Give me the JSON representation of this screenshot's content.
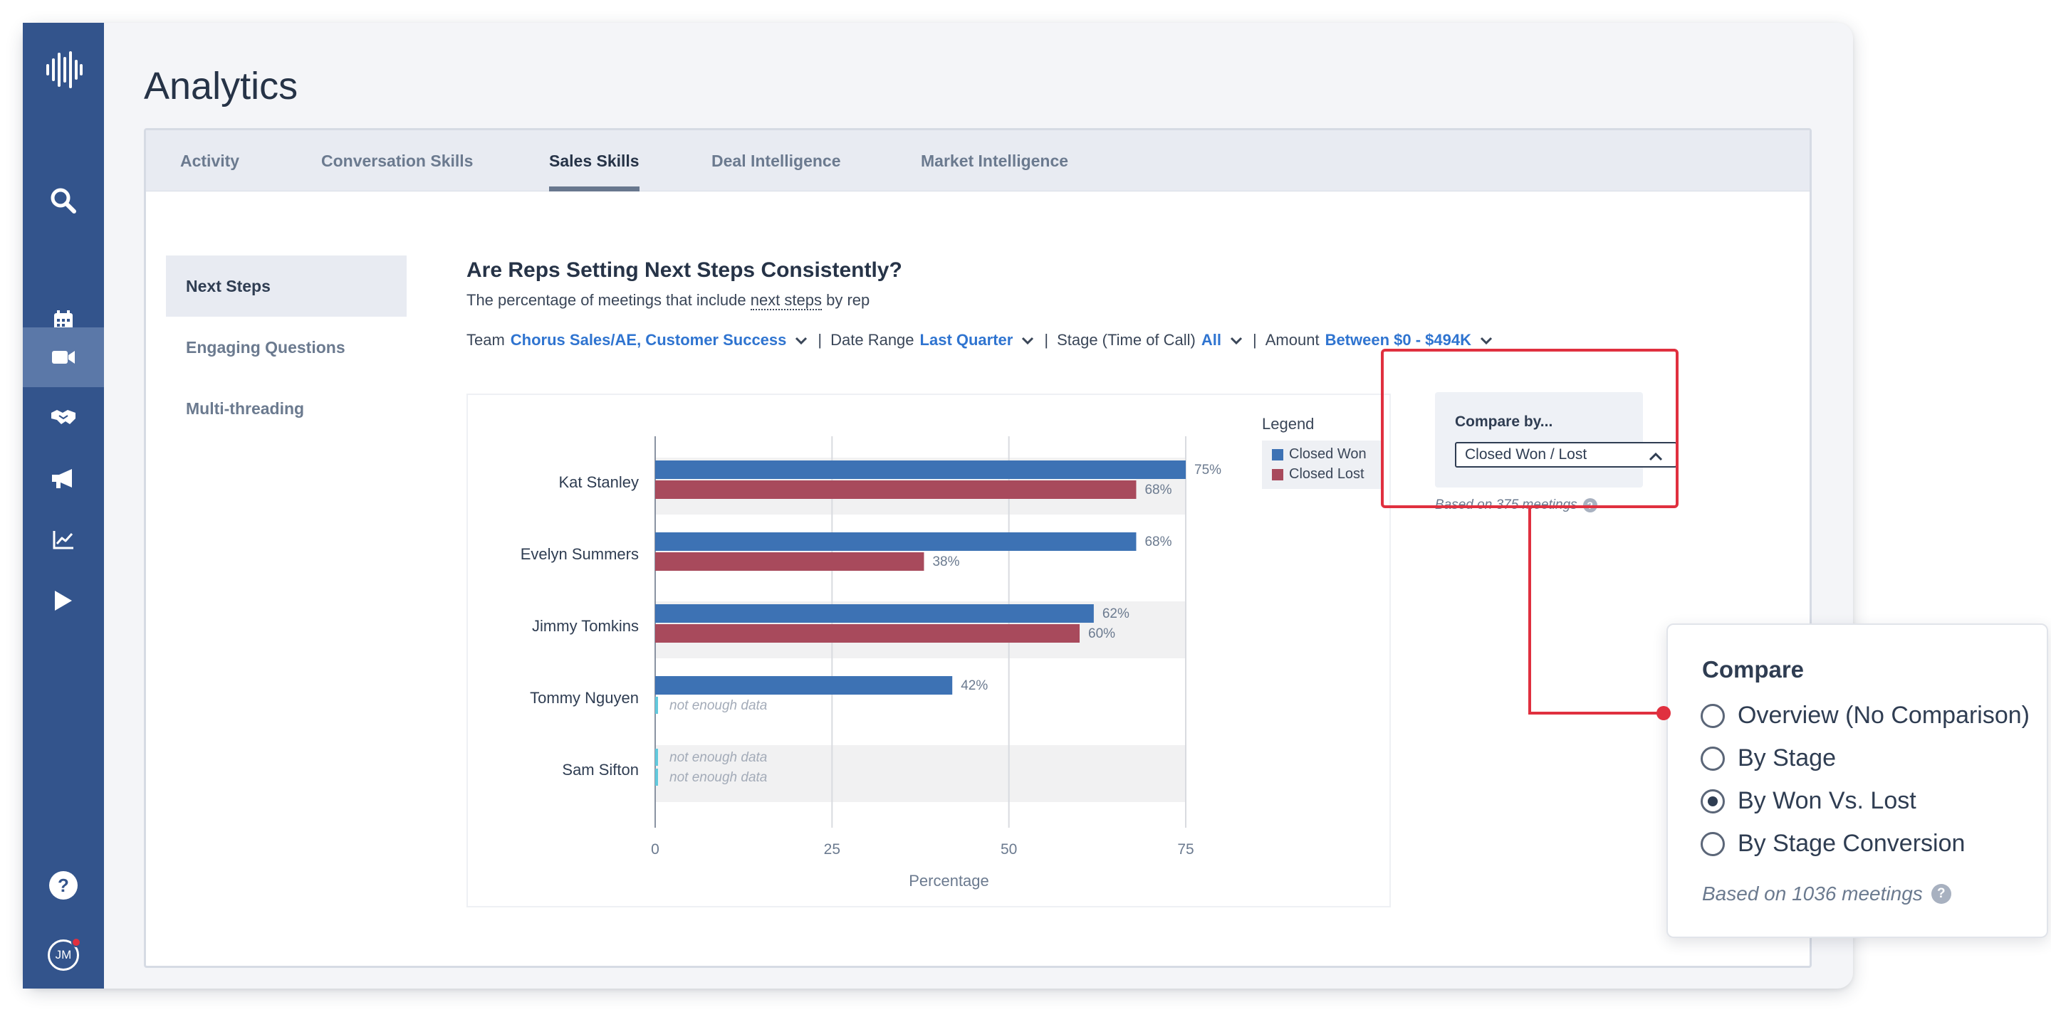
{
  "app": {
    "title": "Analytics"
  },
  "sidebar": {
    "items": [
      {
        "icon": "logo-waveform-icon"
      },
      {
        "icon": "search-icon"
      },
      {
        "icon": "calendar-icon"
      },
      {
        "icon": "video-camera-icon",
        "active": true
      },
      {
        "icon": "handshake-icon"
      },
      {
        "icon": "megaphone-icon"
      },
      {
        "icon": "line-chart-icon"
      },
      {
        "icon": "play-icon"
      },
      {
        "icon": "help-icon"
      },
      {
        "icon": "avatar",
        "initials": "JM",
        "notification_color": "#e0303f"
      }
    ]
  },
  "tabs": [
    {
      "label": "Activity"
    },
    {
      "label": "Conversation Skills"
    },
    {
      "label": "Sales Skills",
      "active": true
    },
    {
      "label": "Deal Intelligence"
    },
    {
      "label": "Market Intelligence"
    }
  ],
  "subnav": [
    {
      "label": "Next Steps",
      "active": true
    },
    {
      "label": "Engaging Questions"
    },
    {
      "label": "Multi-threading"
    }
  ],
  "chart_header": {
    "title": "Are Reps Setting Next Steps Consistently?",
    "subtitle_before": "The percentage of meetings that include ",
    "subtitle_link": "next steps",
    "subtitle_after": " by rep"
  },
  "filters": {
    "team_label": "Team",
    "team_value": "Chorus Sales/AE, Customer Success",
    "date_label": "Date Range",
    "date_value": "Last Quarter",
    "stage_label": "Stage (Time of Call)",
    "stage_value": "All",
    "amount_label": "Amount",
    "amount_value": "Between $0 - $494K",
    "separator": "|"
  },
  "legend": {
    "title": "Legend",
    "items": [
      {
        "label": "Closed Won",
        "color": "#3d72b4"
      },
      {
        "label": "Closed Lost",
        "color": "#a84a5c"
      }
    ]
  },
  "compare_panel": {
    "label": "Compare by...",
    "selected": "Closed Won / Lost",
    "based_on": "Based on 375 meetings"
  },
  "popup": {
    "title": "Compare",
    "options": [
      {
        "label": "Overview (No Comparison)",
        "checked": false
      },
      {
        "label": "By Stage",
        "checked": false
      },
      {
        "label": "By Won Vs. Lost",
        "checked": true
      },
      {
        "label": "By Stage Conversion",
        "checked": false
      }
    ],
    "based_on": "Based on 1036 meetings"
  },
  "colors": {
    "sidebar": "#33548c",
    "accent_link": "#2f74d0",
    "highlight": "#e0303f",
    "closed_won": "#3d72b4",
    "closed_lost": "#a84a5c",
    "no_data_marker": "#62c9dd"
  },
  "chart_data": {
    "type": "bar",
    "orientation": "horizontal",
    "categories": [
      "Kat Stanley",
      "Evelyn Summers",
      "Jimmy Tomkins",
      "Tommy Nguyen",
      "Sam Sifton"
    ],
    "series": [
      {
        "name": "Closed Won",
        "values": [
          75,
          68,
          62,
          42,
          null
        ]
      },
      {
        "name": "Closed Lost",
        "values": [
          68,
          38,
          60,
          null,
          null
        ]
      }
    ],
    "value_labels": {
      "Closed Won": [
        "75%",
        "68%",
        "62%",
        "42%",
        "not enough data"
      ],
      "Closed Lost": [
        "68%",
        "38%",
        "60%",
        "not enough data",
        "not enough data"
      ]
    },
    "xlabel": "Percentage",
    "xticks": [
      "0",
      "25",
      "50",
      "75"
    ],
    "xlim": [
      0,
      75
    ],
    "grid": true,
    "legend_position": "right"
  }
}
